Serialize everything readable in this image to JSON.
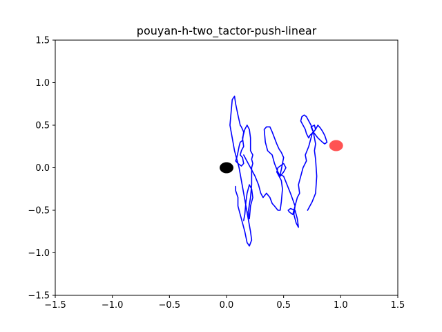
{
  "chart_data": {
    "type": "line",
    "title": "pouyan-h-two_tactor-push-linear",
    "xlabel": "",
    "ylabel": "",
    "xlim": [
      -1.5,
      1.5
    ],
    "ylim": [
      -1.5,
      1.5
    ],
    "xticks": [
      -1.5,
      -1.0,
      -0.5,
      0.0,
      0.5,
      1.0,
      1.5
    ],
    "yticks": [
      -1.5,
      -1.0,
      -0.5,
      0.0,
      0.5,
      1.0,
      1.5
    ],
    "xtick_labels": [
      "−1.5",
      "−1.0",
      "−0.5",
      "0.0",
      "0.5",
      "1.0",
      "1.5"
    ],
    "ytick_labels": [
      "−1.5",
      "−1.0",
      "−0.5",
      "0.0",
      "0.5",
      "1.0",
      "1.5"
    ],
    "grid": false,
    "series": [
      {
        "color": "#0000ff",
        "x": [
          0.08,
          0.08,
          0.1,
          0.1,
          0.12,
          0.14,
          0.16,
          0.18,
          0.2,
          0.22,
          0.21,
          0.19,
          0.17,
          0.15,
          0.13,
          0.11,
          0.09,
          0.07,
          0.05,
          0.03,
          0.04,
          0.05,
          0.07,
          0.08,
          0.1,
          0.12,
          0.13,
          0.15,
          0.14,
          0.12,
          0.11,
          0.1,
          0.09,
          0.08,
          0.1,
          0.13,
          0.15,
          0.14,
          0.12,
          0.13,
          0.15,
          0.14,
          0.16,
          0.18,
          0.2,
          0.21,
          0.21,
          0.23,
          0.22,
          0.23,
          0.22,
          0.22,
          0.21,
          0.19,
          0.2,
          0.21,
          0.23,
          0.22,
          0.2,
          0.18,
          0.17,
          0.16,
          0.15
        ],
        "y": [
          -0.22,
          -0.27,
          -0.35,
          -0.45,
          -0.55,
          -0.65,
          -0.75,
          -0.88,
          -0.92,
          -0.85,
          -0.75,
          -0.6,
          -0.45,
          -0.3,
          -0.15,
          0.0,
          0.1,
          0.2,
          0.35,
          0.5,
          0.65,
          0.8,
          0.84,
          0.75,
          0.62,
          0.5,
          0.48,
          0.42,
          0.32,
          0.3,
          0.25,
          0.18,
          0.12,
          0.08,
          0.05,
          0.02,
          0.05,
          0.12,
          0.15,
          0.2,
          0.25,
          0.35,
          0.45,
          0.5,
          0.45,
          0.35,
          0.2,
          0.15,
          0.1,
          0.05,
          0.0,
          -0.2,
          -0.35,
          -0.52,
          -0.6,
          -0.45,
          -0.35,
          -0.25,
          -0.2,
          -0.3,
          -0.4,
          -0.55,
          -0.62
        ]
      },
      {
        "color": "#0000ff",
        "x": [
          0.15,
          0.17,
          0.19,
          0.21,
          0.23,
          0.25,
          0.28,
          0.3,
          0.32,
          0.35,
          0.38,
          0.4,
          0.42,
          0.45,
          0.47,
          0.48,
          0.49,
          0.48,
          0.46,
          0.44,
          0.45,
          0.47,
          0.5,
          0.52,
          0.5,
          0.47,
          0.45,
          0.42,
          0.4,
          0.36,
          0.34,
          0.33,
          0.35,
          0.38,
          0.4,
          0.42,
          0.44,
          0.46,
          0.48,
          0.5,
          0.49,
          0.48,
          0.47
        ],
        "y": [
          0.15,
          0.1,
          0.05,
          0.0,
          -0.05,
          -0.1,
          -0.2,
          -0.3,
          -0.35,
          -0.3,
          -0.35,
          -0.42,
          -0.45,
          -0.5,
          -0.5,
          -0.4,
          -0.25,
          -0.15,
          -0.1,
          -0.05,
          0.0,
          0.02,
          0.05,
          0.0,
          -0.05,
          -0.1,
          -0.05,
          0.05,
          0.15,
          0.2,
          0.3,
          0.45,
          0.48,
          0.48,
          0.42,
          0.35,
          0.28,
          0.22,
          0.18,
          0.12,
          0.05,
          -0.02,
          -0.08
        ]
      },
      {
        "color": "#0000ff",
        "x": [
          0.47,
          0.5,
          0.53,
          0.56,
          0.6,
          0.58,
          0.55,
          0.54,
          0.56,
          0.6,
          0.62,
          0.63,
          0.61,
          0.59,
          0.6,
          0.62,
          0.64,
          0.63,
          0.65,
          0.67,
          0.7,
          0.69,
          0.72,
          0.75,
          0.78,
          0.8,
          0.82,
          0.84,
          0.86,
          0.88,
          0.86,
          0.84,
          0.8,
          0.76,
          0.74,
          0.77,
          0.78,
          0.76,
          0.73,
          0.72,
          0.7,
          0.69,
          0.67,
          0.65,
          0.66,
          0.68,
          0.7,
          0.72,
          0.74,
          0.76,
          0.77,
          0.78,
          0.77,
          0.78,
          0.79,
          0.78,
          0.75,
          0.73,
          0.71
        ],
        "y": [
          -0.08,
          -0.1,
          -0.2,
          -0.3,
          -0.45,
          -0.55,
          -0.52,
          -0.5,
          -0.48,
          -0.5,
          -0.6,
          -0.7,
          -0.65,
          -0.55,
          -0.45,
          -0.35,
          -0.3,
          -0.2,
          -0.1,
          0.0,
          0.08,
          0.15,
          0.25,
          0.4,
          0.45,
          0.5,
          0.47,
          0.43,
          0.38,
          0.3,
          0.28,
          0.3,
          0.35,
          0.42,
          0.48,
          0.5,
          0.45,
          0.42,
          0.38,
          0.35,
          0.4,
          0.45,
          0.5,
          0.55,
          0.6,
          0.62,
          0.6,
          0.55,
          0.5,
          0.42,
          0.35,
          0.28,
          0.2,
          0.1,
          -0.1,
          -0.3,
          -0.4,
          -0.45,
          -0.5
        ]
      }
    ],
    "markers": [
      {
        "name": "",
        "x": 0.0,
        "y": 0.0,
        "color": "#000000"
      },
      {
        "name": "",
        "x": 0.96,
        "y": 0.26,
        "color": "#ff4040"
      }
    ]
  }
}
